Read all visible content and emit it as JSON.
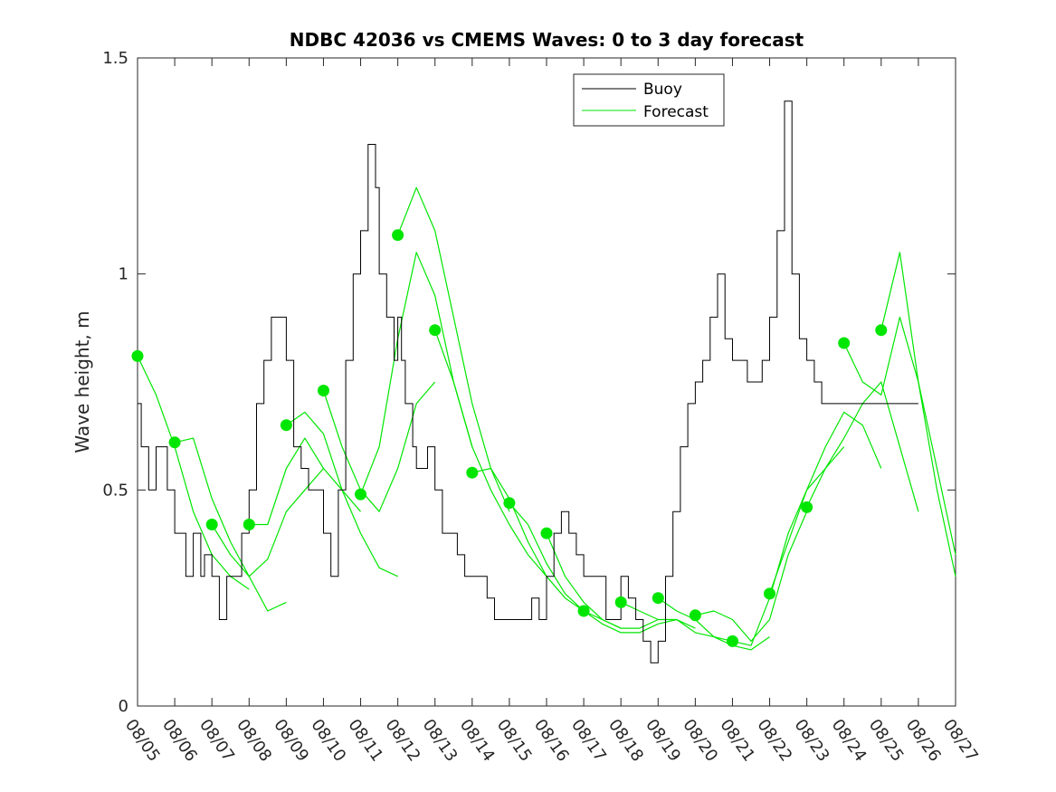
{
  "chart_data": {
    "type": "line",
    "title": "NDBC 42036 vs CMEMS Waves: 0 to 3 day forecast",
    "xlabel": "",
    "ylabel": "Wave height, m",
    "ylim": [
      0,
      1.5
    ],
    "xlim": [
      0,
      22
    ],
    "yticks": [
      0,
      0.5,
      1,
      1.5
    ],
    "ytick_labels": [
      "0",
      "0.5",
      "1",
      "1.5"
    ],
    "x_tick_labels": [
      "08/05",
      "08/06",
      "08/07",
      "08/08",
      "08/09",
      "08/10",
      "08/11",
      "08/12",
      "08/13",
      "08/14",
      "08/15",
      "08/16",
      "08/17",
      "08/18",
      "08/19",
      "08/20",
      "08/21",
      "08/22",
      "08/23",
      "08/24",
      "08/25",
      "08/26",
      "08/27"
    ],
    "colors": {
      "buoy": "#000000",
      "forecast": "#00e600",
      "axis": "#262626"
    },
    "legend": {
      "position": "top-center",
      "entries": [
        {
          "label": "Buoy",
          "color": "#000000"
        },
        {
          "label": "Forecast",
          "color": "#00e600"
        }
      ]
    },
    "buoy": {
      "name": "Buoy",
      "x": [
        0,
        0.1,
        0.2,
        0.3,
        0.5,
        0.6,
        0.8,
        1.0,
        1.1,
        1.3,
        1.5,
        1.7,
        1.8,
        2.0,
        2.2,
        2.4,
        2.6,
        2.8,
        3.0,
        3.2,
        3.4,
        3.6,
        3.8,
        4.0,
        4.2,
        4.4,
        4.6,
        4.8,
        5.0,
        5.2,
        5.4,
        5.6,
        5.8,
        6.0,
        6.2,
        6.4,
        6.5,
        6.7,
        6.9,
        7.0,
        7.1,
        7.2,
        7.3,
        7.4,
        7.5,
        7.6,
        7.8,
        8.0,
        8.2,
        8.4,
        8.6,
        8.8,
        9.0,
        9.2,
        9.4,
        9.6,
        9.8,
        10.0,
        10.2,
        10.4,
        10.6,
        10.8,
        11.0,
        11.2,
        11.4,
        11.6,
        11.8,
        12.0,
        12.2,
        12.4,
        12.6,
        12.8,
        13.0,
        13.2,
        13.4,
        13.6,
        13.8,
        14.0,
        14.2,
        14.4,
        14.6,
        14.8,
        15.0,
        15.2,
        15.4,
        15.6,
        15.8,
        16.0,
        16.2,
        16.4,
        16.6,
        16.8,
        17.0,
        17.2,
        17.4,
        17.6,
        17.8,
        18.0,
        18.2,
        18.4,
        18.6,
        18.8,
        19.0,
        19.2,
        19.4,
        19.6,
        19.8,
        20.0,
        20.2,
        20.4,
        20.6,
        20.8,
        21.0
      ],
      "values": [
        0.7,
        0.6,
        0.6,
        0.5,
        0.6,
        0.6,
        0.5,
        0.4,
        0.4,
        0.3,
        0.4,
        0.3,
        0.35,
        0.3,
        0.2,
        0.3,
        0.3,
        0.4,
        0.5,
        0.7,
        0.8,
        0.9,
        0.9,
        0.8,
        0.6,
        0.55,
        0.5,
        0.5,
        0.4,
        0.3,
        0.5,
        0.8,
        1.0,
        1.1,
        1.3,
        1.2,
        1.0,
        0.9,
        0.8,
        0.9,
        0.8,
        0.7,
        0.7,
        0.6,
        0.55,
        0.55,
        0.6,
        0.5,
        0.4,
        0.4,
        0.35,
        0.3,
        0.3,
        0.3,
        0.25,
        0.2,
        0.2,
        0.2,
        0.2,
        0.2,
        0.25,
        0.2,
        0.3,
        0.4,
        0.45,
        0.4,
        0.35,
        0.3,
        0.3,
        0.3,
        0.2,
        0.2,
        0.3,
        0.25,
        0.2,
        0.15,
        0.1,
        0.15,
        0.3,
        0.45,
        0.6,
        0.7,
        0.75,
        0.8,
        0.9,
        1.0,
        0.85,
        0.8,
        0.8,
        0.75,
        0.75,
        0.8,
        0.9,
        1.1,
        1.4,
        1.0,
        0.85,
        0.8,
        0.75,
        0.7,
        0.7,
        0.7,
        0.7,
        0.7,
        0.7,
        0.7,
        0.7,
        0.7,
        0.7,
        0.7,
        0.7,
        0.7,
        0.7
      ]
    },
    "forecast": {
      "name": "Forecast",
      "series": [
        {
          "x": [
            0,
            0.5,
            1,
            1.5,
            2,
            2.5,
            3
          ],
          "values": [
            0.81,
            0.72,
            0.6,
            0.45,
            0.35,
            0.3,
            0.27
          ]
        },
        {
          "x": [
            1,
            1.5,
            2,
            2.5,
            3,
            3.5,
            4
          ],
          "values": [
            0.61,
            0.62,
            0.48,
            0.38,
            0.3,
            0.22,
            0.24
          ]
        },
        {
          "x": [
            2,
            2.5,
            3,
            3.5,
            4,
            4.5,
            5
          ],
          "values": [
            0.42,
            0.35,
            0.3,
            0.34,
            0.45,
            0.5,
            0.55
          ]
        },
        {
          "x": [
            3,
            3.5,
            4,
            4.5,
            5,
            5.5,
            6
          ],
          "values": [
            0.42,
            0.42,
            0.55,
            0.62,
            0.55,
            0.5,
            0.45
          ]
        },
        {
          "x": [
            4,
            4.5,
            5,
            5.5,
            6,
            6.5,
            7
          ],
          "values": [
            0.65,
            0.68,
            0.63,
            0.5,
            0.4,
            0.32,
            0.3
          ]
        },
        {
          "x": [
            5,
            5.5,
            6,
            6.5,
            7,
            7.5,
            8
          ],
          "values": [
            0.73,
            0.6,
            0.5,
            0.45,
            0.55,
            0.7,
            0.75
          ]
        },
        {
          "x": [
            6,
            6.5,
            7,
            7.5,
            8,
            8.5,
            9
          ],
          "values": [
            0.49,
            0.6,
            0.85,
            1.05,
            0.95,
            0.75,
            0.6
          ]
        },
        {
          "x": [
            7,
            7.5,
            8,
            8.5,
            9,
            9.5,
            10
          ],
          "values": [
            1.09,
            1.2,
            1.1,
            0.9,
            0.7,
            0.55,
            0.45
          ]
        },
        {
          "x": [
            8,
            8.5,
            9,
            9.5,
            10,
            10.5,
            11
          ],
          "values": [
            0.87,
            0.75,
            0.6,
            0.5,
            0.42,
            0.35,
            0.3
          ]
        },
        {
          "x": [
            9,
            9.5,
            10,
            10.5,
            11,
            11.5,
            12
          ],
          "values": [
            0.54,
            0.55,
            0.48,
            0.38,
            0.3,
            0.25,
            0.22
          ]
        },
        {
          "x": [
            10,
            10.5,
            11,
            11.5,
            12,
            12.5,
            13
          ],
          "values": [
            0.47,
            0.42,
            0.33,
            0.26,
            0.22,
            0.2,
            0.18
          ]
        },
        {
          "x": [
            11,
            11.5,
            12,
            12.5,
            13,
            13.5,
            14
          ],
          "values": [
            0.4,
            0.3,
            0.24,
            0.2,
            0.18,
            0.18,
            0.2
          ]
        },
        {
          "x": [
            12,
            12.5,
            13,
            13.5,
            14,
            14.5,
            15
          ],
          "values": [
            0.22,
            0.19,
            0.17,
            0.17,
            0.19,
            0.2,
            0.18
          ]
        },
        {
          "x": [
            13,
            13.5,
            14,
            14.5,
            15,
            15.5,
            16
          ],
          "values": [
            0.24,
            0.22,
            0.2,
            0.2,
            0.17,
            0.16,
            0.15
          ]
        },
        {
          "x": [
            14,
            14.5,
            15,
            15.5,
            16,
            16.5,
            17
          ],
          "values": [
            0.25,
            0.22,
            0.2,
            0.16,
            0.14,
            0.13,
            0.16
          ]
        },
        {
          "x": [
            15,
            15.5,
            16,
            16.5,
            17,
            17.5,
            18
          ],
          "values": [
            0.21,
            0.22,
            0.2,
            0.15,
            0.2,
            0.35,
            0.45
          ]
        },
        {
          "x": [
            16,
            16.5,
            17,
            17.5,
            18,
            18.5,
            19
          ],
          "values": [
            0.15,
            0.14,
            0.25,
            0.4,
            0.5,
            0.55,
            0.6
          ]
        },
        {
          "x": [
            17,
            17.5,
            18,
            18.5,
            19,
            19.5,
            20
          ],
          "values": [
            0.26,
            0.38,
            0.5,
            0.6,
            0.68,
            0.65,
            0.55
          ]
        },
        {
          "x": [
            18,
            18.5,
            19,
            19.5,
            20,
            20.5,
            21
          ],
          "values": [
            0.46,
            0.55,
            0.62,
            0.7,
            0.75,
            0.6,
            0.45
          ]
        },
        {
          "x": [
            19,
            19.5,
            20,
            20.5,
            21,
            21.5,
            22
          ],
          "values": [
            0.84,
            0.75,
            0.72,
            0.9,
            0.75,
            0.55,
            0.35
          ]
        },
        {
          "x": [
            20,
            20.5,
            21,
            21.5,
            22
          ],
          "values": [
            0.87,
            1.05,
            0.75,
            0.5,
            0.3
          ]
        }
      ],
      "initial_points": {
        "x": [
          0,
          1,
          2,
          3,
          4,
          5,
          6,
          7,
          8,
          9,
          10,
          11,
          12,
          13,
          14,
          15,
          16,
          17,
          18,
          19,
          20
        ],
        "values": [
          0.81,
          0.61,
          0.42,
          0.42,
          0.65,
          0.73,
          0.49,
          1.09,
          0.87,
          0.54,
          0.47,
          0.4,
          0.22,
          0.24,
          0.25,
          0.21,
          0.15,
          0.26,
          0.46,
          0.84,
          0.87
        ]
      }
    }
  }
}
